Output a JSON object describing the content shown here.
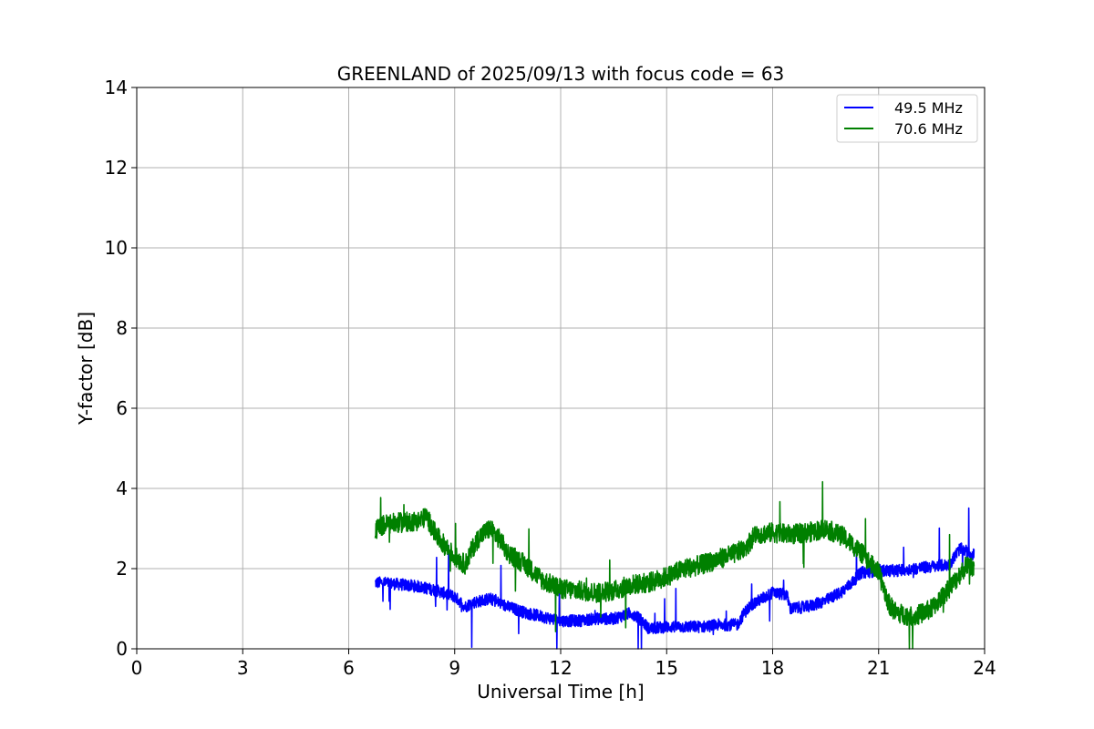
{
  "chart_data": {
    "type": "line",
    "title": "GREENLAND of 2025/09/13 with focus code = 63",
    "xlabel": "Universal Time [h]",
    "ylabel": "Y-factor [dB]",
    "xlim": [
      0,
      24
    ],
    "ylim": [
      0,
      14
    ],
    "xticks": [
      0,
      3,
      6,
      9,
      12,
      15,
      18,
      21,
      24
    ],
    "yticks": [
      0,
      2,
      4,
      6,
      8,
      10,
      12,
      14
    ],
    "grid": true,
    "legend_position": "top-right",
    "series": [
      {
        "name": "49.5 MHz",
        "color": "#0000ff",
        "noise_amplitude": 0.15,
        "x": [
          6.75,
          7.0,
          7.5,
          8.0,
          8.5,
          9.0,
          9.3,
          9.5,
          10.0,
          10.5,
          11.0,
          11.5,
          12.0,
          12.5,
          13.0,
          13.5,
          14.0,
          14.3,
          14.5,
          15.0,
          15.5,
          16.0,
          16.5,
          17.0,
          17.2,
          17.4,
          17.8,
          18.0,
          18.4,
          18.5,
          19.0,
          19.5,
          20.0,
          20.3,
          20.5,
          21.0,
          21.5,
          22.0,
          22.5,
          23.0,
          23.3,
          23.7
        ],
        "y": [
          1.65,
          1.65,
          1.6,
          1.55,
          1.45,
          1.3,
          1.05,
          1.15,
          1.25,
          1.05,
          0.9,
          0.8,
          0.7,
          0.7,
          0.75,
          0.75,
          0.9,
          0.7,
          0.5,
          0.55,
          0.55,
          0.55,
          0.6,
          0.6,
          0.9,
          1.1,
          1.3,
          1.4,
          1.35,
          1.0,
          1.05,
          1.2,
          1.45,
          1.7,
          1.9,
          1.95,
          1.95,
          2.0,
          2.05,
          2.1,
          2.5,
          2.35
        ]
      },
      {
        "name": "70.6 MHz",
        "color": "#008000",
        "noise_amplitude": 0.25,
        "x": [
          6.75,
          7.0,
          7.5,
          8.0,
          8.2,
          8.5,
          8.8,
          9.0,
          9.3,
          9.5,
          9.7,
          10.0,
          10.3,
          10.5,
          11.0,
          11.5,
          12.0,
          12.5,
          13.0,
          13.5,
          14.0,
          14.5,
          15.0,
          15.5,
          16.0,
          16.5,
          17.0,
          17.3,
          17.5,
          18.0,
          18.5,
          19.0,
          19.5,
          20.0,
          20.5,
          21.0,
          21.3,
          21.5,
          22.0,
          22.5,
          23.0,
          23.5,
          23.7
        ],
        "y": [
          2.95,
          3.1,
          3.15,
          3.2,
          3.3,
          2.8,
          2.5,
          2.3,
          2.1,
          2.5,
          2.8,
          3.0,
          2.7,
          2.4,
          2.1,
          1.7,
          1.5,
          1.45,
          1.4,
          1.45,
          1.6,
          1.65,
          1.8,
          2.0,
          2.1,
          2.25,
          2.4,
          2.6,
          2.85,
          2.9,
          2.85,
          2.9,
          3.0,
          2.8,
          2.4,
          1.9,
          1.1,
          0.9,
          0.8,
          1.0,
          1.5,
          2.1,
          2.0
        ]
      }
    ]
  }
}
